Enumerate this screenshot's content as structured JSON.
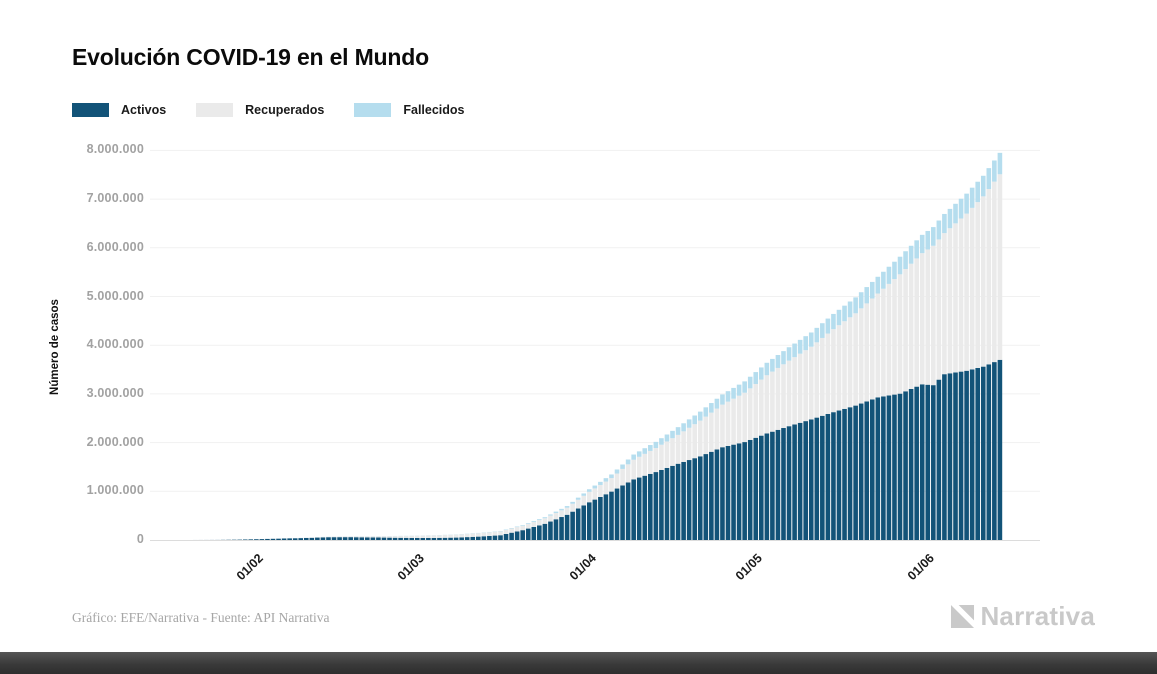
{
  "title": "Evolución COVID-19 en el Mundo",
  "legend": {
    "items": [
      {
        "label": "Activos",
        "color": "#125378"
      },
      {
        "label": "Recuperados",
        "color": "#eaeaea"
      },
      {
        "label": "Fallecidos",
        "color": "#b5ddee"
      }
    ]
  },
  "footer": {
    "credit": "Gráfico: EFE/Narrativa - Fuente: API Narrativa",
    "brand": "Narrativa"
  },
  "chart_data": {
    "type": "bar",
    "stacked": true,
    "title": "Evolución COVID-19 en el Mundo",
    "ylabel": "Número de casos",
    "xlabel": "",
    "ylim": [
      0,
      8000000
    ],
    "grid": true,
    "legend_position": "top-left",
    "bar_unit": "1 bar = 1 day",
    "date_range": {
      "start": "22/01/2020",
      "end": "15/06/2020"
    },
    "y_ticks": [
      "8.000.000",
      "7.000.000",
      "6.000.000",
      "5.000.000",
      "4.000.000",
      "3.000.000",
      "2.000.000",
      "1.000.000",
      "0"
    ],
    "x_ticks": [
      {
        "label": "01/02",
        "day": 10
      },
      {
        "label": "01/03",
        "day": 39
      },
      {
        "label": "01/04",
        "day": 70
      },
      {
        "label": "01/05",
        "day": 100
      },
      {
        "label": "01/06",
        "day": 131
      }
    ],
    "series_names": [
      "Activos",
      "Recuperados",
      "Fallecidos"
    ],
    "series_colors": [
      "#125378",
      "#eaeaea",
      "#b5ddee"
    ],
    "days_total": 146,
    "anchors": [
      {
        "day": 0,
        "date": "22/01",
        "activos": 510,
        "recuperados": 30,
        "fallecidos": 17
      },
      {
        "day": 4,
        "date": "26/01",
        "activos": 1800,
        "recuperados": 50,
        "fallecidos": 56
      },
      {
        "day": 8,
        "date": "30/01",
        "activos": 7900,
        "recuperados": 140,
        "fallecidos": 171
      },
      {
        "day": 12,
        "date": "03/02",
        "activos": 19000,
        "recuperados": 620,
        "fallecidos": 430
      },
      {
        "day": 16,
        "date": "07/02",
        "activos": 31000,
        "recuperados": 1500,
        "fallecidos": 640
      },
      {
        "day": 20,
        "date": "11/02",
        "activos": 42000,
        "recuperados": 4000,
        "fallecidos": 1000
      },
      {
        "day": 24,
        "date": "15/02",
        "activos": 58000,
        "recuperados": 9400,
        "fallecidos": 1700
      },
      {
        "day": 28,
        "date": "19/02",
        "activos": 59000,
        "recuperados": 16000,
        "fallecidos": 2000
      },
      {
        "day": 32,
        "date": "23/02",
        "activos": 53000,
        "recuperados": 23200,
        "fallecidos": 2470
      },
      {
        "day": 36,
        "date": "27/02",
        "activos": 46700,
        "recuperados": 33300,
        "fallecidos": 2810
      },
      {
        "day": 39,
        "date": "01/03",
        "activos": 42700,
        "recuperados": 42700,
        "fallecidos": 3000
      },
      {
        "day": 43,
        "date": "05/03",
        "activos": 42000,
        "recuperados": 51700,
        "fallecidos": 3350
      },
      {
        "day": 47,
        "date": "09/03",
        "activos": 49700,
        "recuperados": 61000,
        "fallecidos": 4000
      },
      {
        "day": 51,
        "date": "13/03",
        "activos": 69500,
        "recuperados": 70300,
        "fallecidos": 5400
      },
      {
        "day": 55,
        "date": "17/03",
        "activos": 98000,
        "recuperados": 79900,
        "fallecidos": 7500
      },
      {
        "day": 59,
        "date": "21/03",
        "activos": 202000,
        "recuperados": 91700,
        "fallecidos": 13000
      },
      {
        "day": 63,
        "date": "25/03",
        "activos": 333000,
        "recuperados": 114000,
        "fallecidos": 21200
      },
      {
        "day": 67,
        "date": "29/03",
        "activos": 518000,
        "recuperados": 145000,
        "fallecidos": 33900
      },
      {
        "day": 71,
        "date": "02/04",
        "activos": 775000,
        "recuperados": 214000,
        "fallecidos": 53200
      },
      {
        "day": 75,
        "date": "06/04",
        "activos": 994000,
        "recuperados": 277000,
        "fallecidos": 74600
      },
      {
        "day": 79,
        "date": "10/04",
        "activos": 1245000,
        "recuperados": 403000,
        "fallecidos": 107000
      },
      {
        "day": 83,
        "date": "14/04",
        "activos": 1395000,
        "recuperados": 494000,
        "fallecidos": 126000
      },
      {
        "day": 87,
        "date": "18/04",
        "activos": 1566000,
        "recuperados": 592000,
        "fallecidos": 159000
      },
      {
        "day": 91,
        "date": "22/04",
        "activos": 1718000,
        "recuperados": 733000,
        "fallecidos": 185000
      },
      {
        "day": 95,
        "date": "26/04",
        "activos": 1905000,
        "recuperados": 875000,
        "fallecidos": 209000
      },
      {
        "day": 99,
        "date": "30/04",
        "activos": 2011000,
        "recuperados": 1013000,
        "fallecidos": 233000
      },
      {
        "day": 103,
        "date": "04/05",
        "activos": 2187000,
        "recuperados": 1196000,
        "fallecidos": 256000
      },
      {
        "day": 107,
        "date": "08/05",
        "activos": 2337000,
        "recuperados": 1346000,
        "fallecidos": 275000
      },
      {
        "day": 111,
        "date": "12/05",
        "activos": 2476000,
        "recuperados": 1493000,
        "fallecidos": 292000
      },
      {
        "day": 115,
        "date": "16/05",
        "activos": 2625000,
        "recuperados": 1704000,
        "fallecidos": 313000
      },
      {
        "day": 119,
        "date": "20/05",
        "activos": 2760000,
        "recuperados": 1895000,
        "fallecidos": 327000
      },
      {
        "day": 123,
        "date": "24/05",
        "activos": 2929000,
        "recuperados": 2132000,
        "fallecidos": 344000
      },
      {
        "day": 127,
        "date": "28/05",
        "activos": 3005000,
        "recuperados": 2451000,
        "fallecidos": 361000
      },
      {
        "day": 131,
        "date": "01/06",
        "activos": 3197000,
        "recuperados": 2693000,
        "fallecidos": 376000
      },
      {
        "day": 133,
        "date": "03/06",
        "activos": 3180000,
        "recuperados": 2862000,
        "fallecidos": 383000
      },
      {
        "day": 135,
        "date": "05/06",
        "activos": 3405000,
        "recuperados": 2897000,
        "fallecidos": 393000
      },
      {
        "day": 139,
        "date": "09/06",
        "activos": 3475000,
        "recuperados": 3227000,
        "fallecidos": 410000
      },
      {
        "day": 142,
        "date": "12/06",
        "activos": 3560000,
        "recuperados": 3496000,
        "fallecidos": 423000
      },
      {
        "day": 145,
        "date": "15/06",
        "activos": 3700000,
        "recuperados": 3810000,
        "fallecidos": 440000
      }
    ]
  }
}
